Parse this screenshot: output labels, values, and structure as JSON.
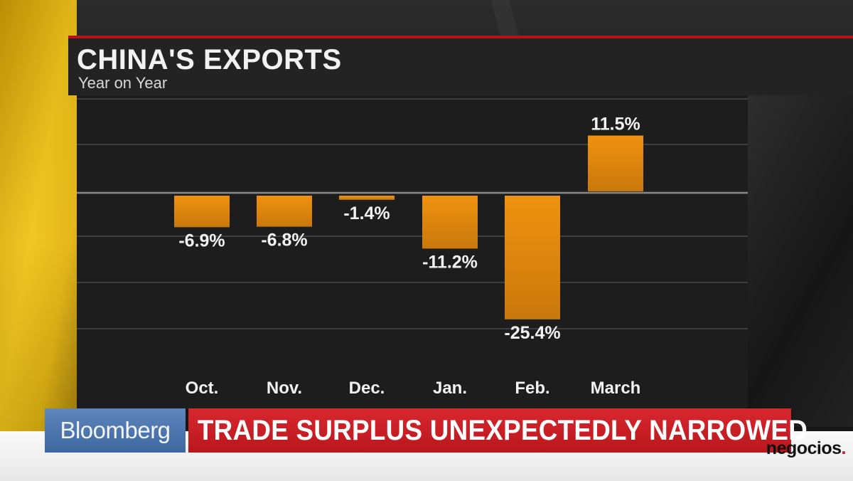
{
  "chart_data": {
    "type": "bar",
    "title": "CHINA'S EXPORTS",
    "subtitle": "Year on Year",
    "categories": [
      "Oct.",
      "Nov.",
      "Dec.",
      "Jan.",
      "Feb.",
      "March"
    ],
    "values": [
      -6.9,
      -6.8,
      -1.4,
      -11.2,
      -25.4,
      11.5
    ],
    "value_labels": [
      "-6.9%",
      "-6.8%",
      "-1.4%",
      "-11.2%",
      "-25.4%",
      "11.5%"
    ],
    "ylim": [
      -30,
      15
    ],
    "grid": true,
    "bar_color": "#f0920f",
    "xlabel": "",
    "ylabel": ""
  },
  "broadcast": {
    "brand": "Bloomberg",
    "headline": "TRADE SURPLUS UNEXPECTEDLY NARROWED",
    "brand_color": "#4a74ae",
    "headline_color": "#c91f26"
  },
  "publisher_logo": "negocios"
}
